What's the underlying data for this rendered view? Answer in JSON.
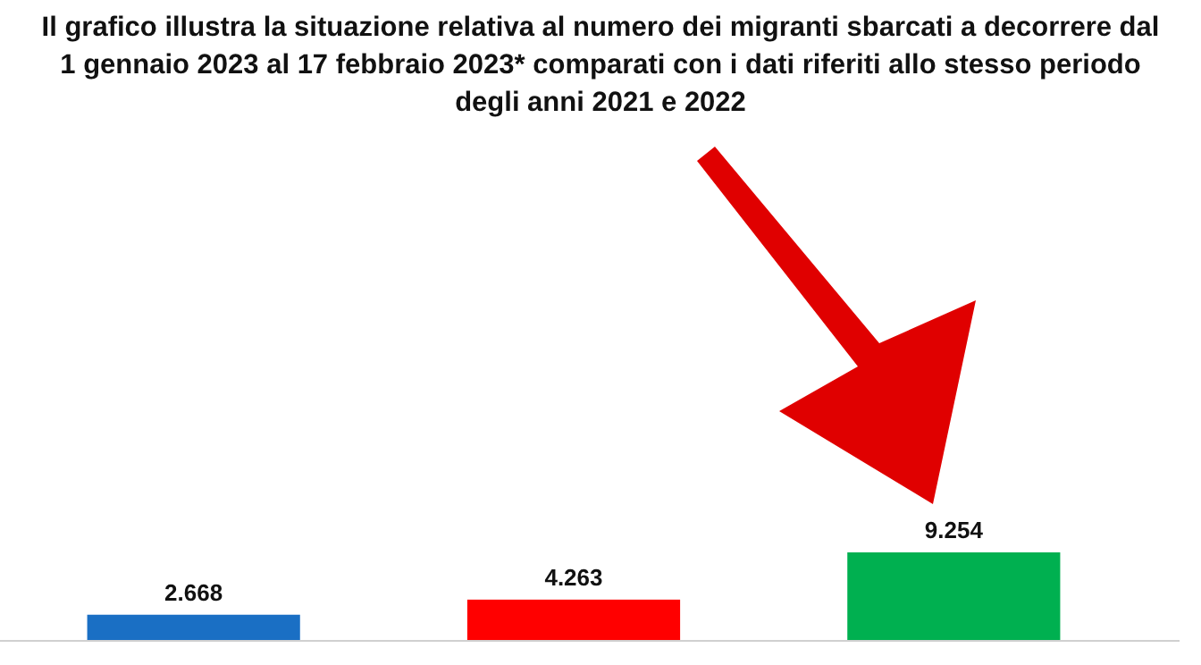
{
  "chart_data": {
    "type": "bar",
    "title": "Il grafico illustra la situazione relativa al numero dei migranti sbarcati a decorrere dal 1 gennaio 2023 al 17 febbraio 2023* comparati con i dati riferiti allo stesso periodo degli anni 2021 e 2022",
    "categories": [
      null,
      null,
      null
    ],
    "values": [
      2668,
      4263,
      9254
    ],
    "colors": [
      "#1a6fc4",
      "#ff0000",
      "#00b050"
    ],
    "value_labels": [
      "2.668",
      "4.263",
      "9.254"
    ]
  }
}
